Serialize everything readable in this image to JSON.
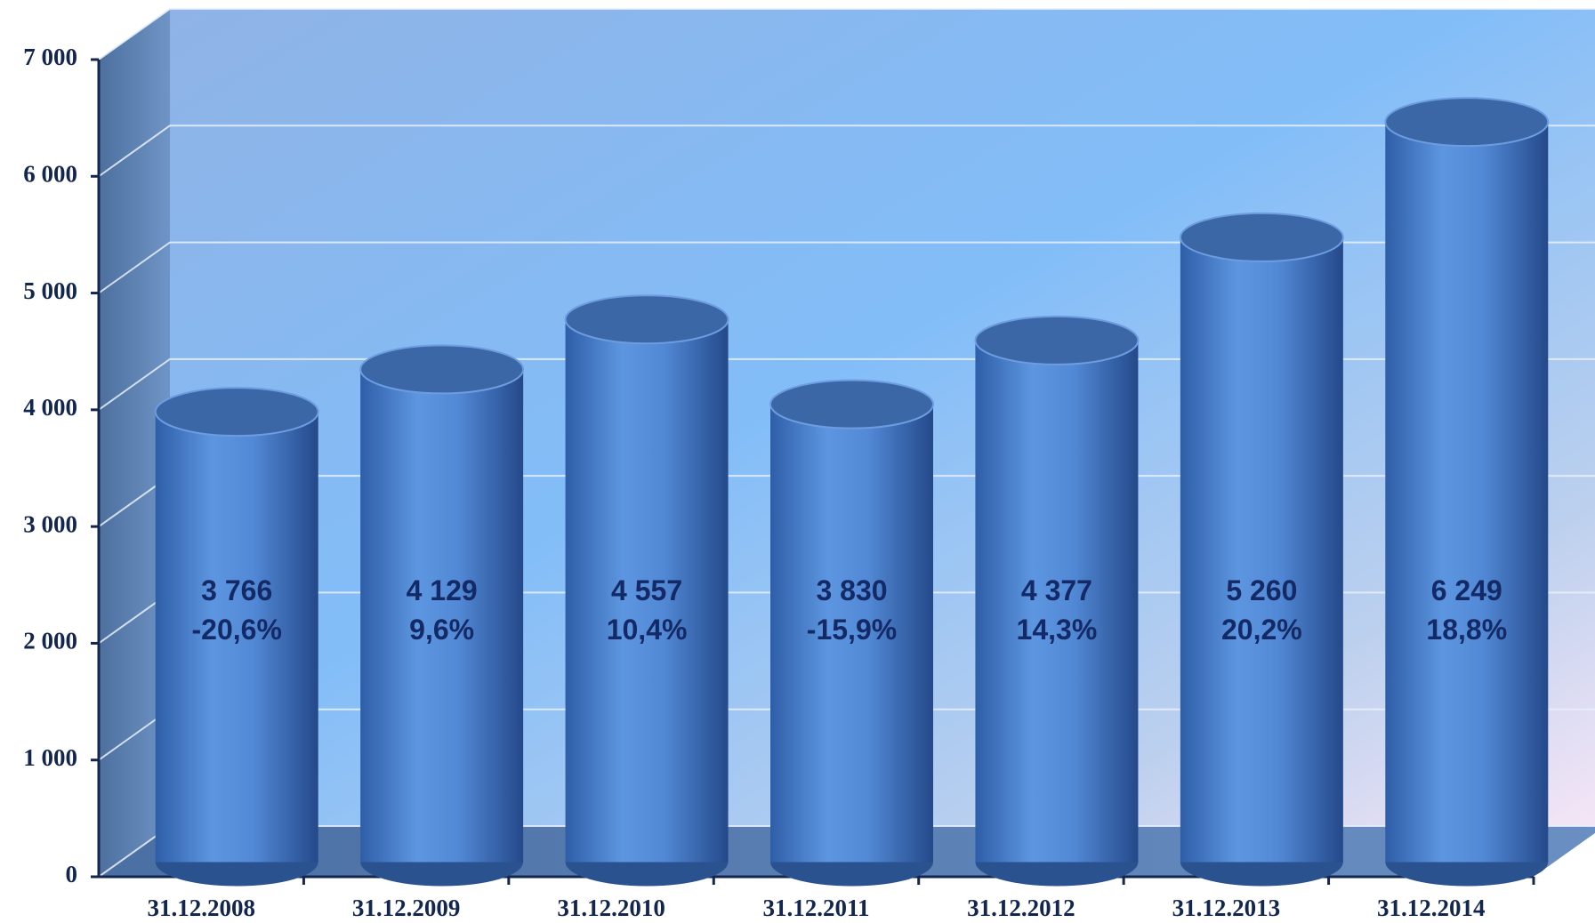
{
  "chart_data": {
    "type": "bar",
    "categories": [
      "31.12.2008",
      "31.12.2009",
      "31.12.2010",
      "31.12.2011",
      "31.12.2012",
      "31.12.2013",
      "31.12.2014"
    ],
    "values": [
      3766,
      4129,
      4557,
      3830,
      4377,
      5260,
      6249
    ],
    "value_labels": [
      "3 766",
      "4 129",
      "4 557",
      "3 830",
      "4 377",
      "5 260",
      "6 249"
    ],
    "growth_labels": [
      "-20,6%",
      "9,6%",
      "10,4%",
      "-15,9%",
      "14,3%",
      "20,2%",
      "18,8%"
    ],
    "color": "#4f86d0",
    "ylim": [
      0,
      7000
    ],
    "yticks": [
      0,
      {
        "value": 1000,
        "label": "1 000"
      },
      {
        "value": 2000,
        "label": "2 000"
      },
      {
        "value": 3000,
        "label": "3 000"
      },
      {
        "value": 4000,
        "label": "4 000"
      },
      {
        "value": 5000,
        "label": "5 000"
      },
      {
        "value": 6000,
        "label": "6 000"
      },
      {
        "value": 7000,
        "label": "7 000"
      }
    ],
    "grid": true
  }
}
